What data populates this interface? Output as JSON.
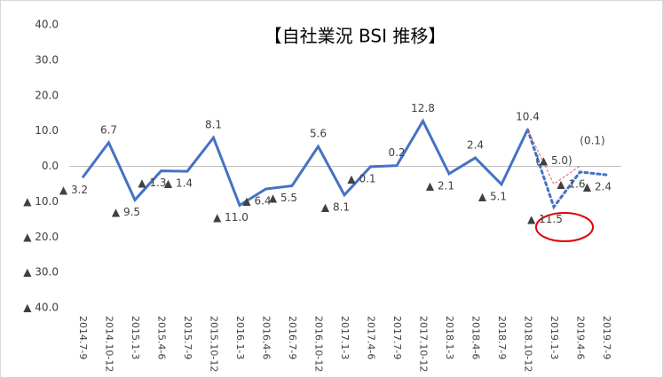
{
  "chart_data": {
    "type": "line",
    "title": "【自社業況 BSI 推移】",
    "categories": [
      "2014.7-9",
      "2014.10-12",
      "2015.1-3",
      "2015.4-6",
      "2015.7-9",
      "2015.10-12",
      "2016.1-3",
      "2016.4-6",
      "2016.7-9",
      "2016.10-12",
      "2017.1-3",
      "2017.4-6",
      "2017.7-9",
      "2017.10-12",
      "2018.1-3",
      "2018.4-6",
      "2018.7-9",
      "2018.10-12",
      "2019.1-3",
      "2019.4-6",
      "2019.7-9"
    ],
    "series": [
      {
        "color": "#4472c4",
        "style": "solid",
        "values": [
          -3.2,
          6.7,
          -9.5,
          -1.3,
          -1.4,
          8.1,
          -11.0,
          -6.4,
          -5.5,
          5.6,
          -8.1,
          -0.1,
          0.2,
          12.8,
          -2.1,
          2.4,
          -5.1,
          10.4,
          null,
          null,
          null
        ],
        "value_labels": [
          "▲ 3.2",
          "6.7",
          "▲ 9.5",
          "▲ 1.3",
          "▲ 1.4",
          "8.1",
          "▲ 11.0",
          "▲ 6.4",
          "▲ 5.5",
          "5.6",
          "▲ 8.1",
          "▲ 0.1",
          "0.2",
          "12.8",
          "▲ 2.1",
          "2.4",
          "▲ 5.1",
          "10.4",
          null,
          null,
          null
        ]
      },
      {
        "color": "#4472c4",
        "style": "dotted",
        "values": [
          null,
          null,
          null,
          null,
          null,
          null,
          null,
          null,
          null,
          null,
          null,
          null,
          null,
          null,
          null,
          null,
          null,
          10.4,
          -11.5,
          -1.6,
          -2.4
        ],
        "value_labels": [
          null,
          null,
          null,
          null,
          null,
          null,
          null,
          null,
          null,
          null,
          null,
          null,
          null,
          null,
          null,
          null,
          null,
          null,
          "▲ 11.5",
          "▲ 1.6",
          "▲ 2.4"
        ]
      },
      {
        "color": "#ff5050",
        "style": "dashed",
        "values": [
          null,
          null,
          null,
          null,
          null,
          null,
          null,
          null,
          null,
          null,
          null,
          null,
          null,
          null,
          null,
          null,
          null,
          10.4,
          -5.0,
          0.1,
          null
        ],
        "value_labels": [
          null,
          null,
          null,
          null,
          null,
          null,
          null,
          null,
          null,
          null,
          null,
          null,
          null,
          null,
          null,
          null,
          null,
          null,
          "(▲ 5.0)",
          "(0.1)",
          null
        ]
      }
    ],
    "ylim": [
      -40,
      40
    ],
    "yticks": [
      {
        "value": 40,
        "label": "40.0"
      },
      {
        "value": 30,
        "label": "30.0"
      },
      {
        "value": 20,
        "label": "20.0"
      },
      {
        "value": 10,
        "label": "10.0"
      },
      {
        "value": 0,
        "label": "0.0"
      },
      {
        "value": -10,
        "label": "▲ 10.0"
      },
      {
        "value": -20,
        "label": "▲ 20.0"
      },
      {
        "value": -30,
        "label": "▲ 30.0"
      },
      {
        "value": -40,
        "label": "▲ 40.0"
      }
    ]
  }
}
